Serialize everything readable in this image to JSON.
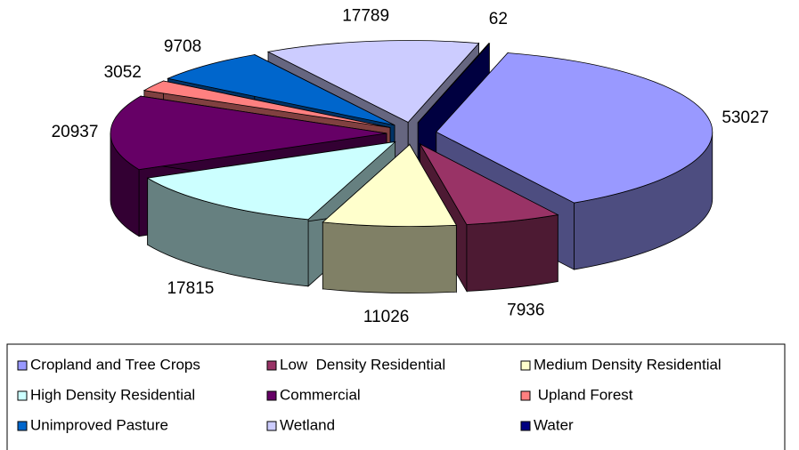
{
  "chart_data": {
    "type": "pie3d",
    "categories": [
      "Cropland and Tree Crops",
      "Low  Density Residential",
      "Medium Density Residential",
      "High Density Residential",
      "Commercial",
      " Upland Forest",
      "Unimproved Pasture",
      "Wetland",
      "Water"
    ],
    "values": [
      53027,
      7936,
      11026,
      17815,
      20937,
      3052,
      9708,
      17789,
      62
    ],
    "colors": [
      "#9999ff",
      "#993366",
      "#ffffcc",
      "#ccffff",
      "#660066",
      "#ff8080",
      "#0066cc",
      "#ccccff",
      "#000080"
    ],
    "legend": "bottom"
  }
}
